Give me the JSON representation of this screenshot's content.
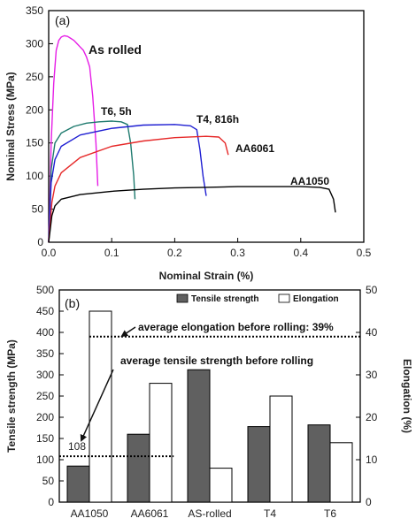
{
  "chart_data": [
    {
      "type": "line",
      "panel_label": "(a)",
      "xlabel": "Nominal Strain (%)",
      "ylabel": "Nominal Stress (MPa)",
      "xlim": [
        0,
        0.5
      ],
      "ylim": [
        0,
        350
      ],
      "xticks": [
        0.0,
        0.1,
        0.2,
        0.3,
        0.4,
        0.5
      ],
      "yticks": [
        0,
        50,
        100,
        150,
        200,
        250,
        300,
        350
      ],
      "xtick_labels": [
        "0.0",
        "0.1",
        "0.2",
        "0.3",
        "0.4",
        "0.5"
      ],
      "ytick_labels": [
        "0",
        "50",
        "100",
        "150",
        "200",
        "250",
        "300",
        "350"
      ],
      "series": [
        {
          "name": "As rolled",
          "color": "#e61ee6",
          "x": [
            0,
            0.004,
            0.008,
            0.012,
            0.016,
            0.02,
            0.025,
            0.03,
            0.035,
            0.04,
            0.045,
            0.05,
            0.055,
            0.06,
            0.065,
            0.07,
            0.075,
            0.078
          ],
          "y": [
            0,
            150,
            240,
            290,
            305,
            310,
            312,
            311,
            308,
            305,
            300,
            295,
            290,
            280,
            265,
            220,
            150,
            85
          ]
        },
        {
          "name": "T6, 5h",
          "color": "#1e7a6e",
          "x": [
            0,
            0.004,
            0.01,
            0.02,
            0.04,
            0.06,
            0.08,
            0.1,
            0.115,
            0.125,
            0.13,
            0.135,
            0.137
          ],
          "y": [
            0,
            110,
            150,
            165,
            175,
            180,
            182,
            183,
            182,
            178,
            150,
            100,
            65
          ]
        },
        {
          "name": "T4, 816h",
          "color": "#1e1ed2",
          "x": [
            0,
            0.004,
            0.01,
            0.02,
            0.05,
            0.1,
            0.15,
            0.2,
            0.225,
            0.235,
            0.24,
            0.245,
            0.25
          ],
          "y": [
            0,
            90,
            125,
            145,
            162,
            172,
            177,
            178,
            176,
            170,
            140,
            100,
            70
          ]
        },
        {
          "name": "AA6061",
          "color": "#e62828",
          "x": [
            0,
            0.005,
            0.01,
            0.02,
            0.05,
            0.1,
            0.15,
            0.2,
            0.25,
            0.27,
            0.28,
            0.285
          ],
          "y": [
            0,
            60,
            85,
            105,
            128,
            145,
            153,
            158,
            160,
            159,
            150,
            132
          ]
        },
        {
          "name": "AA1050",
          "color": "#000000",
          "x": [
            0,
            0.005,
            0.01,
            0.02,
            0.05,
            0.1,
            0.15,
            0.2,
            0.25,
            0.3,
            0.35,
            0.4,
            0.43,
            0.445,
            0.452,
            0.455
          ],
          "y": [
            0,
            40,
            55,
            65,
            72,
            77,
            80,
            82,
            83,
            84,
            84,
            84,
            83,
            80,
            65,
            45
          ]
        }
      ]
    },
    {
      "type": "bar",
      "panel_label": "(b)",
      "categories": [
        "AA1050",
        "AA6061",
        "AS-rolled",
        "T4",
        "T6"
      ],
      "ylabel": "Tensile strength (MPa)",
      "y2label": "Elongation (%)",
      "ylim": [
        0,
        500
      ],
      "y2lim": [
        0,
        50
      ],
      "yticks": [
        0,
        50,
        100,
        150,
        200,
        250,
        300,
        350,
        400,
        450,
        500
      ],
      "ytick_labels": [
        "0",
        "50",
        "100",
        "150",
        "200",
        "250",
        "300",
        "350",
        "400",
        "450",
        "500"
      ],
      "y2ticks": [
        0,
        10,
        20,
        30,
        40,
        50
      ],
      "y2tick_labels": [
        "0",
        "10",
        "20",
        "30",
        "40",
        "50"
      ],
      "series": [
        {
          "name": "Tensile strength",
          "axis": "left",
          "color": "#606060",
          "values": [
            85,
            160,
            312,
            178,
            182
          ]
        },
        {
          "name": "Elongation",
          "axis": "right",
          "color": "#ffffff",
          "values": [
            45,
            28,
            8,
            25,
            14
          ]
        }
      ],
      "reference_lines": [
        {
          "axis": "right",
          "value": 39,
          "label": "average elongation before rolling: 39%"
        },
        {
          "axis": "left",
          "value": 108,
          "label": "average tensile strength before rolling",
          "value_label": "108"
        }
      ],
      "legend_position": "top-right"
    }
  ]
}
